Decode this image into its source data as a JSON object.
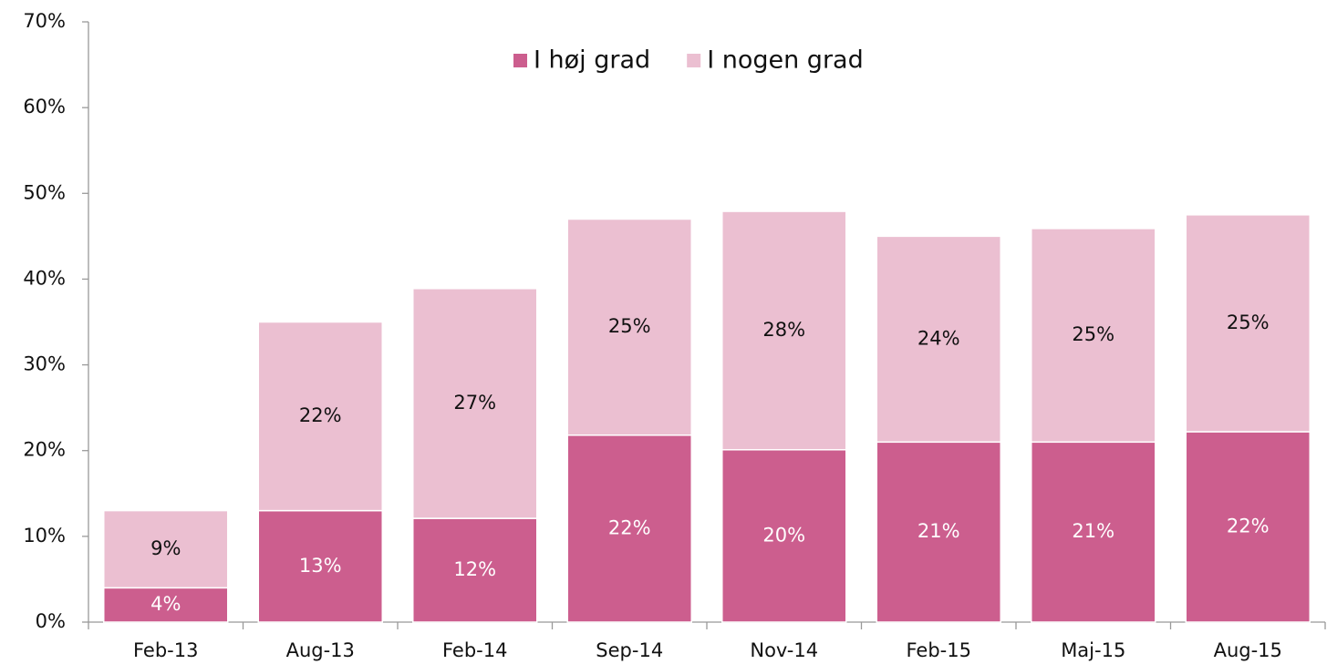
{
  "chart_data": {
    "type": "stacked_bar",
    "categories": [
      "Feb-13",
      "Aug-13",
      "Feb-14",
      "Sep-14",
      "Nov-14",
      "Feb-15",
      "Maj-15",
      "Aug-15"
    ],
    "series": [
      {
        "name": "I høj grad",
        "color": "#cc5e8e",
        "label_color": "#ffffff",
        "values": [
          4.0,
          13.0,
          12.1,
          21.8,
          20.1,
          21.0,
          21.0,
          22.2
        ],
        "value_labels": [
          "4%",
          "13%",
          "12%",
          "22%",
          "20%",
          "21%",
          "21%",
          "22%"
        ]
      },
      {
        "name": "I nogen grad",
        "color": "#ebbfd1",
        "label_color": "#111111",
        "values": [
          9.0,
          22.0,
          26.8,
          25.2,
          27.8,
          24.0,
          24.9,
          25.3
        ],
        "value_labels": [
          "9%",
          "22%",
          "27%",
          "25%",
          "28%",
          "24%",
          "25%",
          "25%"
        ]
      }
    ],
    "ylim": [
      0,
      70
    ],
    "yticks": [
      {
        "value": 0,
        "label": "0%"
      },
      {
        "value": 10,
        "label": "10%"
      },
      {
        "value": 20,
        "label": "20%"
      },
      {
        "value": 30,
        "label": "30%"
      },
      {
        "value": 40,
        "label": "40%"
      },
      {
        "value": 50,
        "label": "50%"
      },
      {
        "value": 60,
        "label": "60%"
      },
      {
        "value": 70,
        "label": "70%"
      }
    ],
    "legend": "top"
  }
}
